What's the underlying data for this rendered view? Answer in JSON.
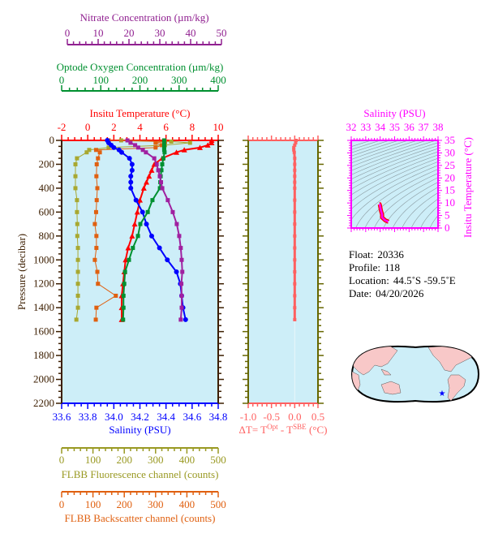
{
  "colors": {
    "background": "#cdeef8",
    "temperature": "#ff0000",
    "salinity": "#0000ff",
    "oxygen": "#009030",
    "nitrate": "#a020a0",
    "fluorescence": "#a8a830",
    "backscatter": "#e06010",
    "pressure": "#3c1e00",
    "delta_t": "#ff6060",
    "ts": "#ff00ff"
  },
  "chart_data": [
    {
      "type": "line",
      "name": "profile",
      "ylabel": "Pressure (decibar)",
      "ylim": [
        0,
        2200
      ],
      "y_inverted": true,
      "yticks": [
        "0",
        "200",
        "400",
        "600",
        "800",
        "1000",
        "1200",
        "1400",
        "1600",
        "1800",
        "2000",
        "2200"
      ],
      "axes": {
        "nitrate": {
          "label": "Nitrate Concentration (µm/kg)",
          "range": [
            0,
            50
          ],
          "ticks": [
            "0",
            "10",
            "20",
            "30",
            "40",
            "50"
          ],
          "position": "top"
        },
        "oxygen": {
          "label": "Optode Oxygen Concentration (µm/kg)",
          "range": [
            0,
            400
          ],
          "ticks": [
            "0",
            "100",
            "200",
            "300",
            "400"
          ],
          "position": "top"
        },
        "temperature": {
          "label": "Insitu Temperature (°C)",
          "range": [
            -2,
            10
          ],
          "ticks": [
            "-2",
            "0",
            "2",
            "4",
            "6",
            "8",
            "10"
          ],
          "position": "top"
        },
        "salinity": {
          "label": "Salinity (PSU)",
          "range": [
            33.6,
            34.8
          ],
          "ticks": [
            "33.6",
            "33.8",
            "34.0",
            "34.2",
            "34.4",
            "34.6",
            "34.8"
          ],
          "position": "bottom"
        },
        "fluorescence": {
          "label": "FLBB Fluorescence channel (counts)",
          "range": [
            0,
            500
          ],
          "ticks": [
            "0",
            "100",
            "200",
            "300",
            "400",
            "500"
          ],
          "position": "bottom"
        },
        "backscatter": {
          "label": "FLBB Backscatter channel (counts)",
          "range": [
            0,
            500
          ],
          "ticks": [
            "0",
            "100",
            "200",
            "300",
            "400",
            "500"
          ],
          "position": "bottom"
        }
      },
      "pressure": [
        0,
        20,
        40,
        60,
        80,
        100,
        150,
        200,
        250,
        300,
        350,
        400,
        500,
        600,
        700,
        800,
        900,
        1000,
        1100,
        1200,
        1300,
        1400,
        1500
      ],
      "series": [
        {
          "key": "temperature",
          "marker": "triangle",
          "values": [
            9.5,
            9.5,
            9.2,
            8.6,
            7.4,
            6.8,
            5.7,
            5.1,
            4.9,
            4.7,
            4.5,
            4.3,
            4.0,
            3.8,
            3.6,
            3.4,
            3.1,
            2.9,
            2.8,
            2.7,
            2.6,
            2.6,
            2.6
          ]
        },
        {
          "key": "salinity",
          "marker": "circle",
          "values": [
            33.95,
            33.96,
            33.98,
            34.0,
            34.04,
            34.06,
            34.12,
            34.14,
            34.14,
            34.13,
            34.13,
            34.13,
            34.17,
            34.22,
            34.25,
            34.29,
            34.35,
            34.41,
            34.48,
            34.51,
            34.52,
            34.53,
            34.55
          ]
        },
        {
          "key": "oxygen",
          "marker": "square",
          "values": [
            262,
            262,
            262,
            262,
            262,
            263,
            260,
            257,
            255,
            253,
            252,
            251,
            232,
            220,
            201,
            195,
            182,
            172,
            162,
            160,
            158,
            158,
            157
          ]
        },
        {
          "key": "nitrate",
          "marker": "square",
          "values": [
            19.5,
            20.5,
            22,
            23,
            24.5,
            25.5,
            28.2,
            29,
            29.5,
            30,
            30.4,
            30.8,
            32.6,
            34.2,
            35.5,
            36.3,
            36.8,
            37.1,
            37.3,
            37.0,
            37.1,
            37.1,
            36.8
          ]
        }
      ],
      "flbb_pressure": [
        0,
        10,
        20,
        40,
        60,
        80,
        100,
        150,
        200,
        300,
        400,
        500,
        600,
        700,
        800,
        900,
        1000,
        1100,
        1200,
        1300,
        1400,
        1500
      ],
      "flbb_series": [
        {
          "key": "fluorescence",
          "marker": "square",
          "values": [
            190,
            350,
            410,
            330,
            150,
            88,
            80,
            49,
            44,
            44,
            44,
            49,
            49,
            50,
            50,
            52,
            52,
            52,
            52,
            52,
            52,
            47
          ]
        },
        {
          "key": "backscatter",
          "marker": "square",
          "values": [
            150,
            330,
            300,
            320,
            300,
            110,
            122,
            116,
            112,
            111,
            114,
            112,
            110,
            106,
            111,
            111,
            106,
            114,
            116,
            173,
            111,
            109
          ]
        }
      ]
    },
    {
      "type": "line",
      "name": "delta-t",
      "xlabel_parts": [
        "ΔT= T",
        "Opt",
        " - T",
        "SBE",
        " (°C)"
      ],
      "xlim": [
        -1.0,
        0.5
      ],
      "xticks": [
        "-1.0",
        "-0.5",
        "0.0",
        "0.5"
      ],
      "ylim": [
        0,
        2200
      ],
      "pressure": [
        0,
        20,
        40,
        60,
        80,
        100,
        150,
        200,
        250,
        300,
        350,
        400,
        500,
        600,
        700,
        800,
        900,
        1000,
        1100,
        1200,
        1300,
        1400,
        1500
      ],
      "values": [
        0.03,
        0.02,
        0.0,
        -0.02,
        -0.02,
        -0.01,
        0.0,
        0.0,
        0.0,
        0.0,
        0.0,
        0.0,
        0.0,
        0.0,
        0.0,
        0.0,
        0.0,
        0.0,
        0.0,
        0.0,
        0.0,
        0.0,
        0.0
      ]
    },
    {
      "type": "scatter",
      "name": "t-s-diagram",
      "xlabel": "Salinity (PSU)",
      "ylabel": "Insitu Temperature (°C)",
      "xlim": [
        32,
        38
      ],
      "ylim": [
        0,
        35
      ],
      "xticks": [
        "32",
        "33",
        "34",
        "35",
        "36",
        "37",
        "38"
      ],
      "yticks": [
        "0",
        "5",
        "10",
        "15",
        "20",
        "25",
        "30",
        "35"
      ],
      "isopycnals": true
    }
  ],
  "info": {
    "float_label": "Float:",
    "float": "20336",
    "profile_label": "Profile:",
    "profile": "118",
    "location_label": "Location:",
    "location": "44.5˚S  -59.5˚E",
    "date_label": "Date:",
    "date": "04/20/2026"
  },
  "map": {
    "projection": "pacific-centered world map",
    "marker_color": "#0000ff"
  }
}
